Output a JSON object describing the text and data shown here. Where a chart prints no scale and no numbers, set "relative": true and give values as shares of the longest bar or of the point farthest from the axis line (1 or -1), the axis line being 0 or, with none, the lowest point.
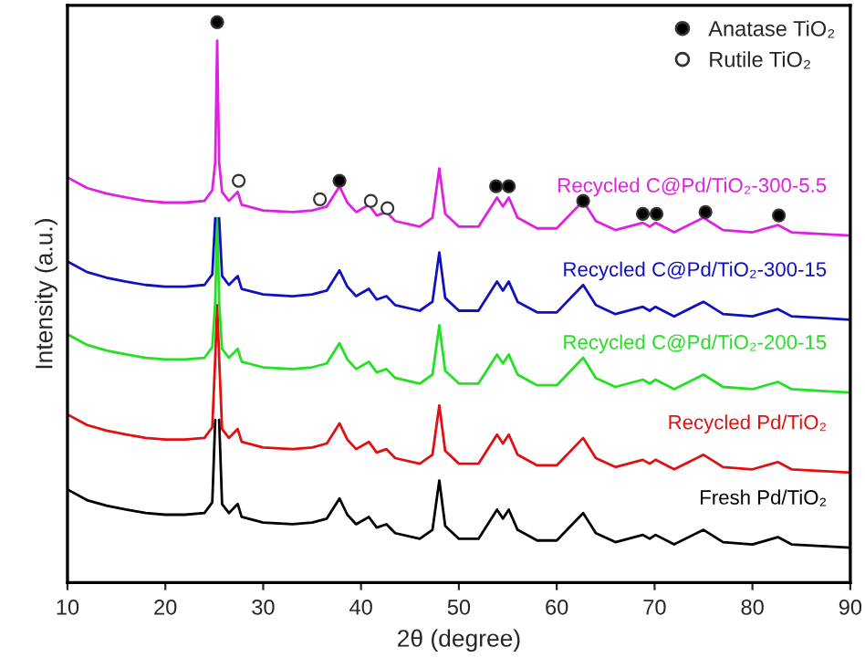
{
  "chart_data": {
    "type": "line",
    "relative": true,
    "xlabel": "2θ (degree)",
    "ylabel": "Intensity (a.u.)",
    "xlim": [
      10,
      90
    ],
    "xticks": [
      10,
      20,
      30,
      40,
      50,
      60,
      70,
      80,
      90
    ],
    "grid": false,
    "legend": "top right",
    "marker": "none",
    "line_style": "solid",
    "x": [
      10,
      12,
      14,
      16,
      18,
      20,
      22,
      24,
      24.8,
      25.1,
      25.3,
      25.5,
      25.8,
      26.5,
      27.4,
      27.8,
      30,
      33,
      35,
      36.5,
      37.8,
      38.6,
      39.5,
      40.8,
      41.6,
      42.6,
      43.5,
      46,
      47.3,
      48.0,
      48.6,
      50,
      52,
      53.9,
      54.5,
      55.1,
      56,
      58,
      60,
      62.7,
      64,
      66,
      68.8,
      69.5,
      70.1,
      72,
      75,
      77,
      80,
      82.6,
      84,
      87,
      90
    ],
    "series": [
      {
        "name": "Fresh Pd/TiO₂",
        "color": "#000000",
        "values": [
          0.166,
          0.147,
          0.137,
          0.13,
          0.124,
          0.121,
          0.121,
          0.124,
          0.143,
          0.29,
          null,
          0.29,
          0.14,
          0.124,
          0.14,
          0.117,
          0.107,
          0.104,
          0.107,
          0.114,
          0.15,
          0.121,
          0.104,
          0.117,
          0.098,
          0.104,
          0.088,
          0.078,
          0.094,
          0.182,
          0.101,
          0.078,
          0.078,
          0.13,
          0.114,
          0.13,
          0.094,
          0.075,
          0.075,
          0.124,
          0.088,
          0.072,
          0.085,
          0.078,
          0.085,
          0.068,
          0.094,
          0.072,
          0.068,
          0.081,
          0.068,
          0.065,
          0.062
        ]
      },
      {
        "name": "Recycled Pd/TiO₂",
        "color": "#e01010",
        "values": [
          0.3,
          0.281,
          0.271,
          0.264,
          0.258,
          0.255,
          0.255,
          0.258,
          0.277,
          0.4,
          0.495,
          0.4,
          0.274,
          0.258,
          0.274,
          0.251,
          0.241,
          0.238,
          0.241,
          0.248,
          0.284,
          0.255,
          0.238,
          0.251,
          0.232,
          0.238,
          0.222,
          0.212,
          0.228,
          0.316,
          0.235,
          0.212,
          0.212,
          0.264,
          0.248,
          0.264,
          0.228,
          0.209,
          0.209,
          0.258,
          0.222,
          0.206,
          0.219,
          0.212,
          0.219,
          0.202,
          0.228,
          0.206,
          0.202,
          0.215,
          0.202,
          0.199,
          0.196
        ]
      },
      {
        "name": "Recycled C@Pd/TiO₂-200-15",
        "color": "#22e022",
        "values": [
          0.443,
          0.424,
          0.414,
          0.407,
          0.401,
          0.398,
          0.398,
          0.401,
          0.42,
          0.5,
          0.65,
          0.5,
          0.417,
          0.401,
          0.417,
          0.394,
          0.384,
          0.381,
          0.384,
          0.391,
          0.427,
          0.398,
          0.381,
          0.394,
          0.375,
          0.381,
          0.365,
          0.355,
          0.371,
          0.459,
          0.378,
          0.355,
          0.355,
          0.407,
          0.391,
          0.407,
          0.371,
          0.352,
          0.352,
          0.401,
          0.365,
          0.349,
          0.362,
          0.355,
          0.362,
          0.345,
          0.371,
          0.349,
          0.345,
          0.358,
          0.345,
          0.342,
          0.339
        ]
      },
      {
        "name": "Recycled C@Pd/TiO₂-300-15",
        "color": "#1010c0",
        "values": [
          0.573,
          0.554,
          0.544,
          0.537,
          0.531,
          0.528,
          0.528,
          0.531,
          0.55,
          0.65,
          null,
          0.65,
          0.547,
          0.531,
          0.547,
          0.524,
          0.514,
          0.511,
          0.514,
          0.521,
          0.557,
          0.528,
          0.511,
          0.524,
          0.505,
          0.511,
          0.495,
          0.485,
          0.501,
          0.589,
          0.508,
          0.485,
          0.485,
          0.537,
          0.521,
          0.537,
          0.501,
          0.482,
          0.482,
          0.531,
          0.495,
          0.479,
          0.492,
          0.485,
          0.492,
          0.475,
          0.501,
          0.479,
          0.475,
          0.488,
          0.475,
          0.472,
          0.469
        ]
      },
      {
        "name": "Recycled C@Pd/TiO₂-300-5.5",
        "color": "#e020e0",
        "values": [
          0.723,
          0.704,
          0.694,
          0.687,
          0.681,
          0.678,
          0.678,
          0.681,
          0.7,
          0.75,
          0.967,
          0.75,
          0.697,
          0.681,
          0.697,
          0.674,
          0.664,
          0.661,
          0.664,
          0.671,
          0.707,
          0.678,
          0.661,
          0.674,
          0.655,
          0.661,
          0.645,
          0.635,
          0.651,
          0.739,
          0.658,
          0.635,
          0.635,
          0.687,
          0.671,
          0.687,
          0.651,
          0.632,
          0.632,
          0.681,
          0.645,
          0.629,
          0.642,
          0.635,
          0.642,
          0.625,
          0.651,
          0.629,
          0.625,
          0.638,
          0.625,
          0.622,
          0.619
        ]
      },
      {
        "name": "Anatase TiO₂",
        "type": "scatter",
        "marker": "circle",
        "color": "#000000",
        "x": [
          25.3,
          37.8,
          53.8,
          55.1,
          62.7,
          68.8,
          70.2,
          75.2,
          82.7
        ],
        "values": [
          1.0,
          0.717,
          0.707,
          0.707,
          0.681,
          0.658,
          0.658,
          0.661,
          0.655
        ]
      },
      {
        "name": "Rutile TiO₂",
        "type": "scatter",
        "marker": "circle",
        "color": "#ffffff",
        "x": [
          27.5,
          35.8,
          41.0,
          42.7
        ],
        "values": [
          0.717,
          0.684,
          0.681,
          0.668
        ]
      }
    ]
  }
}
